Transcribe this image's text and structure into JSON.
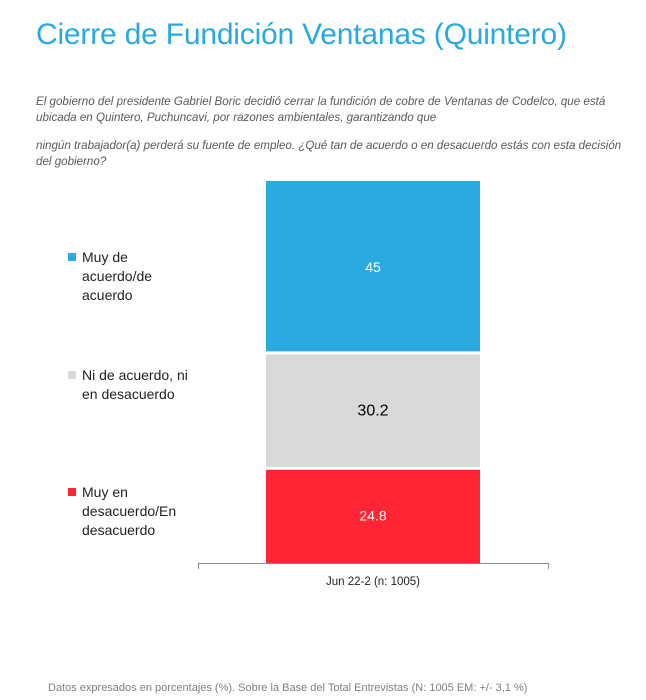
{
  "title": "Cierre de Fundición Ventanas (Quintero)",
  "question_part1": "El gobierno del presidente Gabriel Boric decidió cerrar la fundición de cobre de Ventanas de Codelco, que está ubicada en Quintero, Puchuncavi, por razones ambientales, garantizando que",
  "question_part2": "ningún trabajador(a) perderá su fuente de empleo. ¿Qué tan de acuerdo o en desacuerdo estás con esta decisión del gobierno?",
  "footer": "Datos expresados en porcentajes (%). Sobre la Base del Total Entrevistas (N: 1005  EM: +/- 3,1 %)",
  "chart_data": {
    "type": "bar",
    "stacked": true,
    "categories": [
      "Jun 22-2 (n: 1005)"
    ],
    "series": [
      {
        "name": "Muy de acuerdo/de acuerdo",
        "values": [
          45
        ],
        "color": "#29abe2",
        "label_color": "#ffffff"
      },
      {
        "name": "Ni de acuerdo, ni en desacuerdo",
        "values": [
          30.2
        ],
        "color": "#d9d9d9",
        "label_color": "#000000"
      },
      {
        "name": "Muy en desacuerdo/En desacuerdo",
        "values": [
          24.8
        ],
        "color": "#ff2535",
        "label_color": "#ffffff"
      }
    ],
    "data_labels": [
      "45",
      "30.2",
      "24.8"
    ],
    "ylim": [
      0,
      100
    ],
    "legend_position": "left"
  },
  "legend": [
    {
      "lines": [
        "Muy de",
        "acuerdo/de",
        "acuerdo"
      ]
    },
    {
      "lines": [
        "Ni de acuerdo, ni",
        "en desacuerdo"
      ]
    },
    {
      "lines": [
        "Muy en",
        "desacuerdo/En",
        "desacuerdo"
      ]
    }
  ]
}
